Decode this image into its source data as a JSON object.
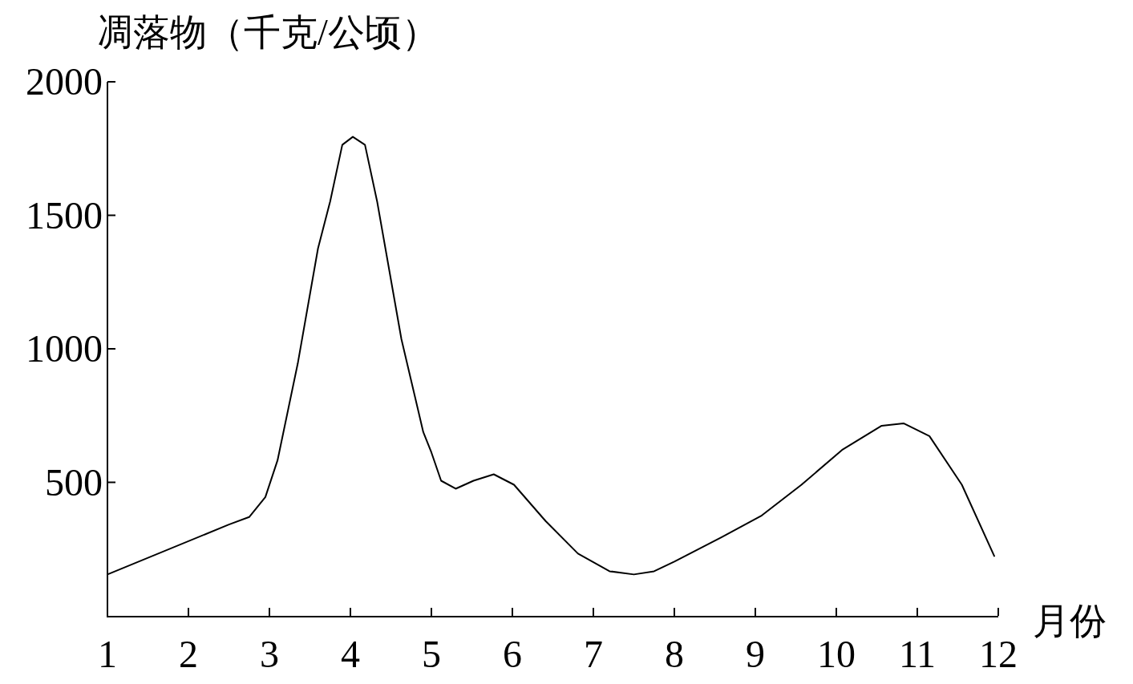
{
  "chart_data": {
    "type": "line",
    "ylabel": "凋落物（千克/公顷）",
    "xlabel": "月份",
    "color": "#000000",
    "x": [
      1,
      2.5,
      2.75,
      2.95,
      3.1,
      3.35,
      3.6,
      3.75,
      3.9,
      4.03,
      4.18,
      4.33,
      4.63,
      4.9,
      5.0,
      5.12,
      5.3,
      5.52,
      5.77,
      6.02,
      6.41,
      6.81,
      7.2,
      7.5,
      7.75,
      8.0,
      8.58,
      9.08,
      9.57,
      10.07,
      10.56,
      10.83,
      11.15,
      11.55,
      11.95
    ],
    "values": [
      155,
      342,
      370,
      445,
      582,
      945,
      1376,
      1552,
      1764,
      1794,
      1764,
      1552,
      1036,
      688,
      612,
      506,
      476,
      506,
      530,
      491,
      355,
      233,
      167,
      155,
      167,
      203,
      294,
      376,
      491,
      621,
      712,
      721,
      673,
      491,
      224
    ],
    "xlim": [
      1,
      12
    ],
    "xticks": [
      1,
      2,
      3,
      4,
      5,
      6,
      7,
      8,
      9,
      10,
      11,
      12
    ],
    "ylim": [
      0,
      2000
    ],
    "yticks": [
      500,
      1000,
      1500,
      2000
    ]
  }
}
